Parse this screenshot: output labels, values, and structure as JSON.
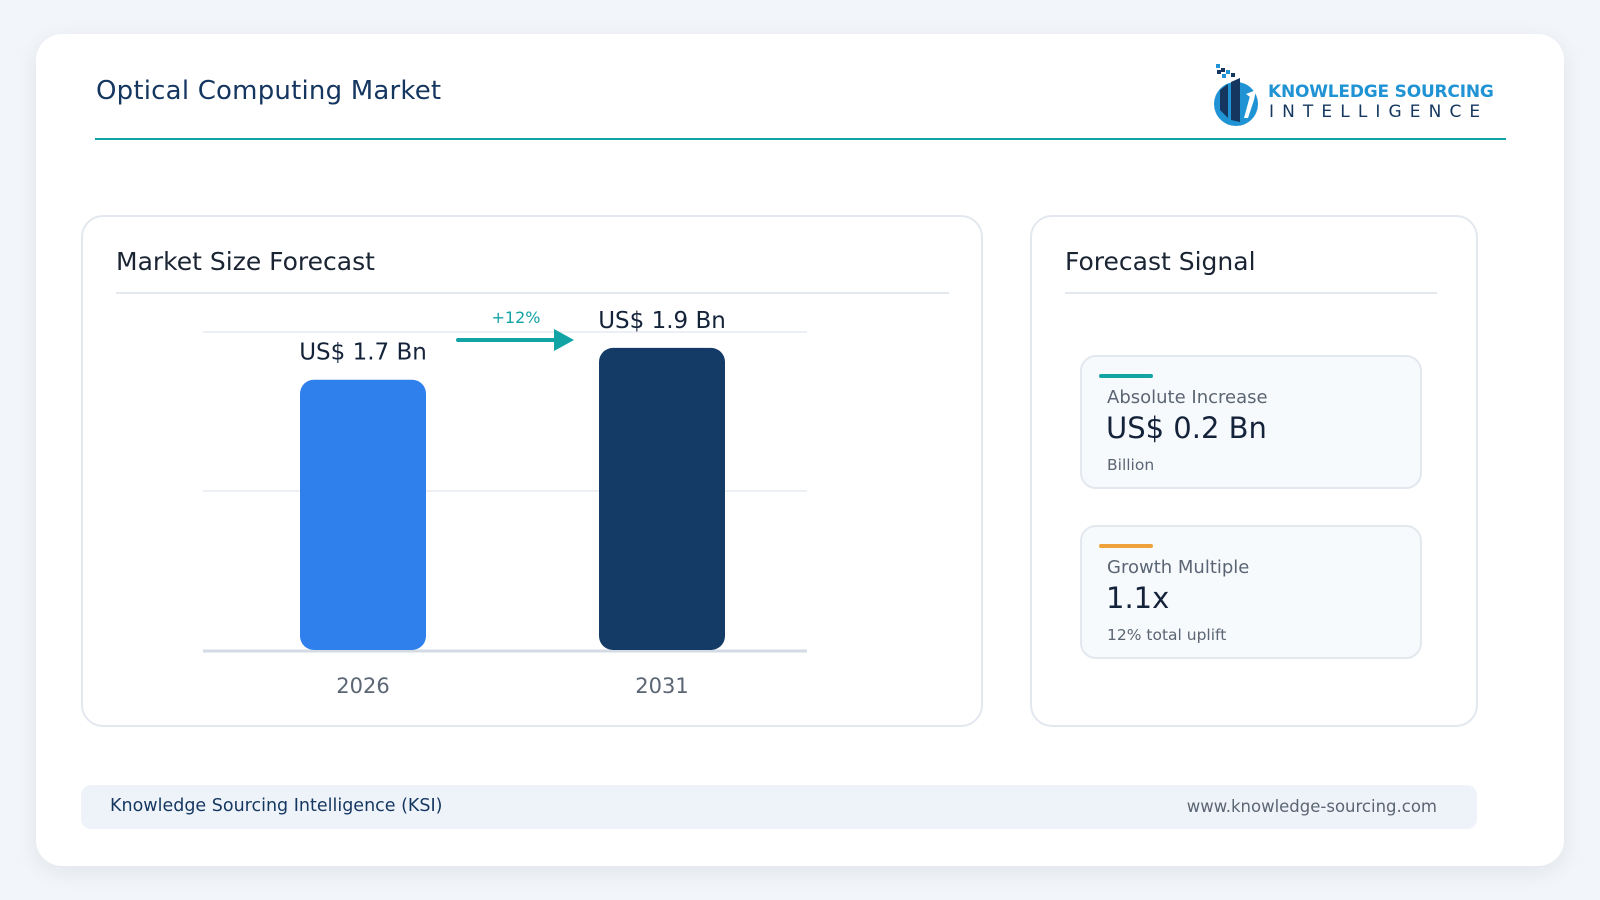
{
  "header": {
    "title": "Optical Computing Market"
  },
  "logo": {
    "line1": "KNOWLEDGE SOURCING",
    "line2": "INTELLIGENCE"
  },
  "left_panel": {
    "title": "Market Size Forecast"
  },
  "right_panel": {
    "title": "Forecast Signal",
    "metrics": [
      {
        "label": "Absolute Increase",
        "value": "US$ 0.2 Bn",
        "sub": "Billion",
        "accent": "#12a3a5"
      },
      {
        "label": "Growth Multiple",
        "value": "1.1x",
        "sub": "12% total uplift",
        "accent": "#f0a23a"
      }
    ]
  },
  "footer": {
    "left": "Knowledge Sourcing Intelligence (KSI)",
    "right": "www.knowledge-sourcing.com"
  },
  "colors": {
    "accent_teal": "#12a3a5",
    "bar_2026": "#2f80ed",
    "bar_2031": "#143b66",
    "title_navy": "#14365f"
  },
  "chart_data": {
    "type": "bar",
    "categories": [
      "2026",
      "2031"
    ],
    "values": [
      1.7,
      1.9
    ],
    "value_labels": [
      "US$ 1.7 Bn",
      "US$ 1.9 Bn"
    ],
    "bar_colors": [
      "#2f80ed",
      "#143b66"
    ],
    "growth_label": "+12%",
    "ylim": [
      0,
      2.0
    ],
    "grid": true,
    "title": "",
    "xlabel": "",
    "ylabel": ""
  }
}
